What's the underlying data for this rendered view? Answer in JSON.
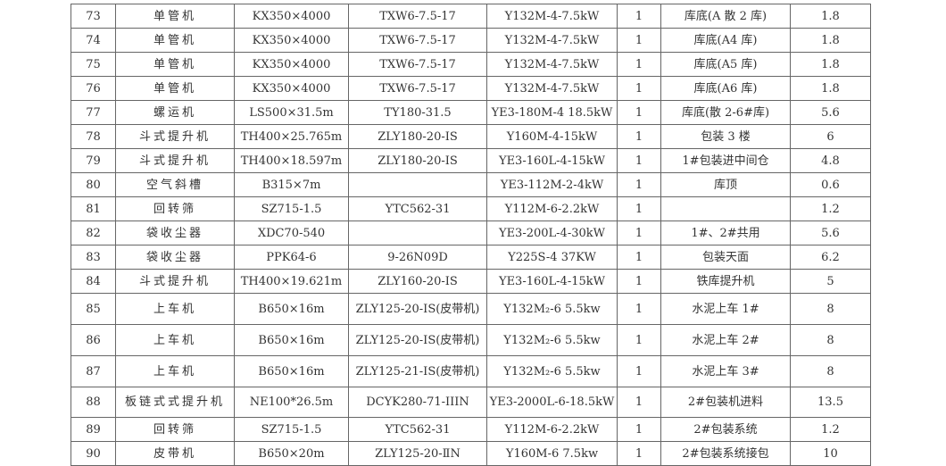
{
  "rows": [
    {
      "no": "73",
      "name": "单管机",
      "spec": "KX350×4000",
      "reducer": "TXW6-7.5-17",
      "motor": "Y132M-4-7.5kW",
      "qty": "1",
      "location": "库底(A 散 2 库)",
      "value": "1.8"
    },
    {
      "no": "74",
      "name": "单管机",
      "spec": "KX350×4000",
      "reducer": "TXW6-7.5-17",
      "motor": "Y132M-4-7.5kW",
      "qty": "1",
      "location": "库底(A4 库)",
      "value": "1.8"
    },
    {
      "no": "75",
      "name": "单管机",
      "spec": "KX350×4000",
      "reducer": "TXW6-7.5-17",
      "motor": "Y132M-4-7.5kW",
      "qty": "1",
      "location": "库底(A5 库)",
      "value": "1.8"
    },
    {
      "no": "76",
      "name": "单管机",
      "spec": "KX350×4000",
      "reducer": "TXW6-7.5-17",
      "motor": "Y132M-4-7.5kW",
      "qty": "1",
      "location": "库底(A6 库)",
      "value": "1.8"
    },
    {
      "no": "77",
      "name": "螺运机",
      "spec": "LS500×31.5m",
      "reducer": "TY180-31.5",
      "motor": "YE3-180M-4 18.5kW",
      "qty": "1",
      "location": "库底(散 2-6#库)",
      "value": "5.6"
    },
    {
      "no": "78",
      "name": "斗式提升机",
      "spec": "TH400×25.765m",
      "reducer": "ZLY180-20-ⅠS",
      "motor": "Y160M-4-15kW",
      "qty": "1",
      "location": "包装 3 楼",
      "value": "6"
    },
    {
      "no": "79",
      "name": "斗式提升机",
      "spec": "TH400×18.597m",
      "reducer": "ZLY180-20-ⅠS",
      "motor": "YE3-160L-4-15kW",
      "qty": "1",
      "location": "1#包装进中间仓",
      "value": "4.8"
    },
    {
      "no": "80",
      "name": "空气斜槽",
      "spec": "B315×7m",
      "reducer": "",
      "motor": "YE3-112M-2-4kW",
      "qty": "1",
      "location": "库顶",
      "value": "0.6"
    },
    {
      "no": "81",
      "name": "回转筛",
      "spec": "SZ715-1.5",
      "reducer": "YTC562-31",
      "motor": "Y112M-6-2.2kW",
      "qty": "1",
      "location": "",
      "value": "1.2"
    },
    {
      "no": "82",
      "name": "袋收尘器",
      "spec": "XDC70-540",
      "reducer": "",
      "motor": "YE3-200L-4-30kW",
      "qty": "1",
      "location": "1#、2#共用",
      "value": "5.6"
    },
    {
      "no": "83",
      "name": "袋收尘器",
      "spec": "PPK64-6",
      "reducer": "9-26N09D",
      "motor": "Y225S-4  37KW",
      "qty": "1",
      "location": "包装天面",
      "value": "6.2"
    },
    {
      "no": "84",
      "name": "斗式提升机",
      "spec": "TH400×19.621m",
      "reducer": "ZLY160-20-ⅠS",
      "motor": "YE3-160L-4-15kW",
      "qty": "1",
      "location": "铁库提升机",
      "value": "5"
    },
    {
      "no": "85",
      "name": "上车机",
      "spec": "B650×16m",
      "reducer": "ZLY125-20-ⅠS(皮带机)",
      "motor": "Y132M₂-6  5.5kw",
      "qty": "1",
      "location": "水泥上车 1#",
      "value": "8"
    },
    {
      "no": "86",
      "name": "上车机",
      "spec": "B650×16m",
      "reducer": "ZLY125-20-ⅠS(皮带机)",
      "motor": "Y132M₂-6  5.5kw",
      "qty": "1",
      "location": "水泥上车 2#",
      "value": "8"
    },
    {
      "no": "87",
      "name": "上车机",
      "spec": "B650×16m",
      "reducer": "ZLY125-21-ⅠS(皮带机)",
      "motor": "Y132M₂-6  5.5kw",
      "qty": "1",
      "location": "水泥上车 3#",
      "value": "8"
    },
    {
      "no": "88",
      "name": "板链式式提升机",
      "spec": "NE100*26.5m",
      "reducer": "DCYK280-71-IIIN",
      "motor": "YE3-2000L-6-18.5kW",
      "qty": "1",
      "location": "2#包装机进料",
      "value": "13.5"
    },
    {
      "no": "89",
      "name": "回转筛",
      "spec": "SZ715-1.5",
      "reducer": "YTC562-31",
      "motor": "Y112M-6-2.2kW",
      "qty": "1",
      "location": "2#包装系统",
      "value": "1.2"
    },
    {
      "no": "90",
      "name": "皮带机",
      "spec": "B650×20m",
      "reducer": "ZLY125-20-ⅡN",
      "motor": "Y160M-6 7.5kw",
      "qty": "1",
      "location": "2#包装系统接包",
      "value": "10"
    }
  ]
}
